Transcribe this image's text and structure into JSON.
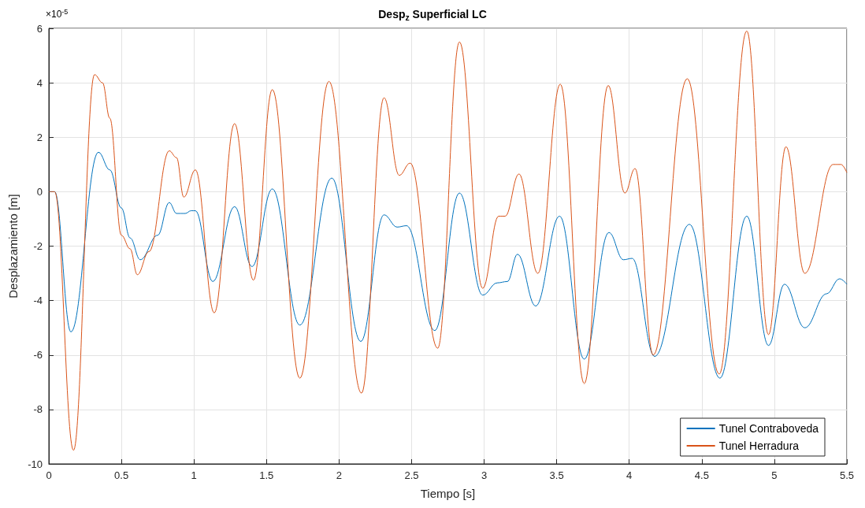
{
  "chart_data": {
    "type": "line",
    "title": "Desp$_{z}$ Superficial LC",
    "xlabel": "Tiempo [s]",
    "ylabel": "Desplazamiento [m]",
    "annotations": [
      "×10$^{-5}$"
    ],
    "xlim": [
      0,
      5.5
    ],
    "xticks": [
      0,
      0.5,
      1,
      1.5,
      2,
      2.5,
      3,
      3.5,
      4,
      4.5,
      5,
      5.5
    ],
    "ylim": [
      -10,
      6
    ],
    "yticks": [
      -10,
      -8,
      -6,
      -4,
      -2,
      0,
      2,
      4,
      6
    ],
    "grid": true,
    "legend": "bottom right",
    "line_style": "solid",
    "marker": "none",
    "series": [
      {
        "name": "Tunel Contraboveda",
        "color": "#0072bd",
        "x": [
          0,
          0.04,
          0.152,
          0.342,
          0.42,
          0.5,
          0.56,
          0.63,
          0.75,
          0.83,
          0.88,
          0.94,
          0.98,
          1.01,
          1.13,
          1.28,
          1.4,
          1.54,
          1.73,
          1.95,
          2.15,
          2.31,
          2.4,
          2.465,
          2.66,
          2.83,
          2.99,
          3.09,
          3.16,
          3.23,
          3.355,
          3.52,
          3.69,
          3.86,
          3.96,
          4.02,
          4.175,
          4.415,
          4.625,
          4.81,
          4.96,
          5.07,
          5.21,
          5.36,
          5.45,
          5.5
        ],
        "values": [
          0,
          0,
          -5.15,
          1.45,
          0.8,
          -0.6,
          -1.7,
          -2.5,
          -1.6,
          -0.4,
          -0.8,
          -0.8,
          -0.7,
          -0.7,
          -3.3,
          -0.55,
          -2.75,
          0.1,
          -4.9,
          0.5,
          -5.5,
          -0.85,
          -1.3,
          -1.25,
          -5.1,
          -0.05,
          -3.8,
          -3.35,
          -3.3,
          -2.3,
          -4.2,
          -0.9,
          -6.15,
          -1.5,
          -2.5,
          -2.45,
          -6.05,
          -1.2,
          -6.85,
          -0.9,
          -5.65,
          -3.4,
          -5,
          -3.75,
          -3.2,
          -3.4
        ]
      },
      {
        "name": "Tunel Herradura",
        "color": "#d95319",
        "x": [
          0,
          0.04,
          0.17,
          0.315,
          0.37,
          0.42,
          0.5,
          0.56,
          0.61,
          0.69,
          0.83,
          0.88,
          0.93,
          1.01,
          1.14,
          1.28,
          1.41,
          1.54,
          1.73,
          1.93,
          2.155,
          2.31,
          2.415,
          2.49,
          2.68,
          2.83,
          2.99,
          3.1,
          3.145,
          3.24,
          3.37,
          3.525,
          3.69,
          3.855,
          3.97,
          4.04,
          4.165,
          4.4,
          4.62,
          4.81,
          4.96,
          5.08,
          5.21,
          5.405,
          5.46,
          5.5
        ],
        "values": [
          0,
          0,
          -9.5,
          4.3,
          4,
          2.7,
          -1.6,
          -2.1,
          -3.05,
          -2.2,
          1.5,
          1.25,
          -0.2,
          0.8,
          -4.45,
          2.5,
          -3.25,
          3.75,
          -6.85,
          4.05,
          -7.4,
          3.45,
          0.6,
          1.05,
          -5.75,
          5.5,
          -3.55,
          -0.9,
          -0.9,
          0.65,
          -3,
          3.95,
          -7.05,
          3.9,
          -0.05,
          0.85,
          -6,
          4.15,
          -6.7,
          5.9,
          -5.25,
          1.65,
          -3,
          1,
          1,
          0.7
        ]
      }
    ]
  }
}
